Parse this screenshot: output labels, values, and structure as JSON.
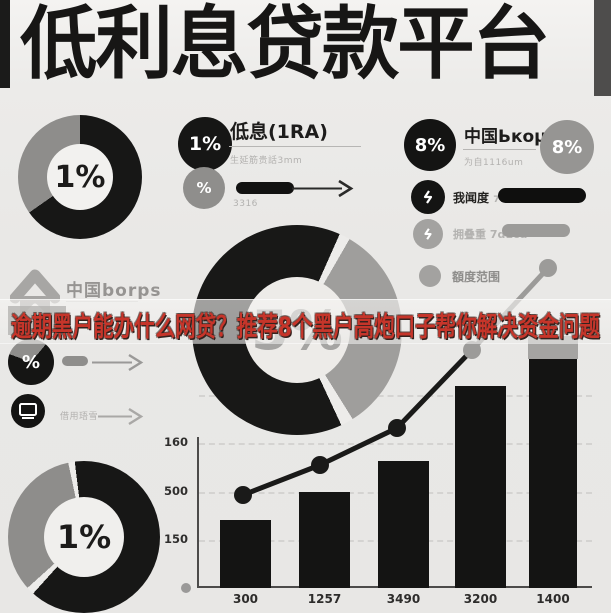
{
  "title": "低利息贷款平台",
  "headline": "逾期黑户能办什么网贷？推荐8个黑户高炮口子帮你解决资金问题",
  "colors": {
    "accent_red": "#c6352a",
    "ink": "#161616",
    "gray": "#9a9998",
    "background": "#e9e8e6"
  },
  "brand": {
    "label": "中国borps"
  },
  "donuts": {
    "top_left": {
      "value": "1%"
    },
    "center": {
      "value": "5%"
    },
    "bottom_left": {
      "value": "1%"
    }
  },
  "stat_left": {
    "row1_badge": "1%",
    "row1_label": "低息(1RA)",
    "row1_sub": "生延筋贵話3mm",
    "row2_badge": "%",
    "row2_sub": "3316"
  },
  "stat_right": {
    "row1_badge": "8%",
    "row1_label": "中国Ькоμ",
    "row1_sub": "为自1116um",
    "row1_badge2": "8%",
    "row2_label": "我闻度",
    "row2_sub": "71mm",
    "row3_label": "拥叠重",
    "row3_sub": "7d1cd",
    "row4_label": "額度范围"
  },
  "mid_rows": {
    "rowA_badge": "%",
    "rowB_label": "借用珸雪"
  },
  "chart_data": {
    "type": "bar+line",
    "title": "",
    "categories": [
      "300",
      "1257",
      "3490",
      "3200",
      "1400"
    ],
    "y_ticks": [
      {
        "y": 443,
        "label": "160"
      },
      {
        "y": 492,
        "label": "500"
      },
      {
        "y": 540,
        "label": "150"
      }
    ],
    "gridlines": [
      395,
      443,
      492,
      540
    ],
    "baseline_y": 588,
    "plot_x": [
      197,
      593
    ],
    "bars": {
      "x_left": [
        220,
        299,
        378,
        455,
        529
      ],
      "widths": [
        51,
        51,
        51,
        51,
        48
      ],
      "top_y": [
        520,
        492,
        461,
        386,
        359
      ],
      "color": "#141413",
      "gray_cap": {
        "bar_index": 4,
        "top_y": 336,
        "color": "#a5a4a2"
      }
    },
    "line": {
      "points": [
        [
          243,
          495
        ],
        [
          320,
          465
        ],
        [
          397,
          428
        ],
        [
          472,
          350
        ],
        [
          548,
          268
        ]
      ],
      "segment_colors": [
        "#1a1a19",
        "#1a1a19",
        "#1a1a19",
        "#9c9b99"
      ],
      "dot_colors": [
        "#1a1a19",
        "#1a1a19",
        "#1a1a19",
        "#9c9b99",
        "#9c9b99"
      ],
      "dot_radius": 9,
      "stroke_width": 5
    },
    "origin_dot": {
      "x": 186,
      "y": 588,
      "color": "#9a9998"
    }
  }
}
